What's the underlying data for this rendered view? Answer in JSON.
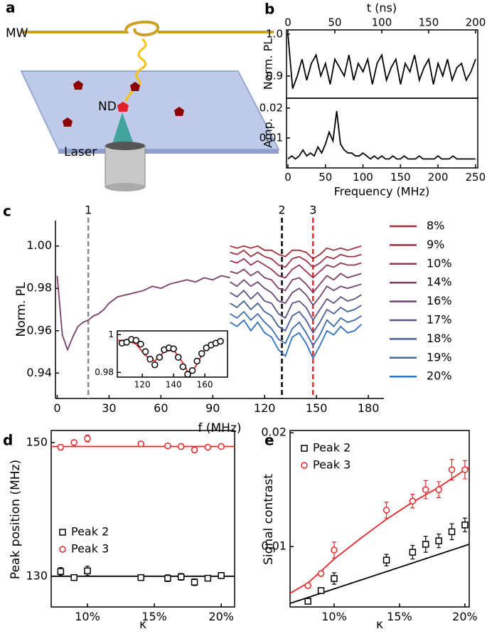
{
  "panel_labels": [
    "a",
    "b",
    "c",
    "d",
    "e"
  ],
  "illustration": {
    "labels": [
      "MW",
      "ND",
      "Laser"
    ]
  },
  "chart_data": [
    {
      "type": "line",
      "xlabel": "t (ns)",
      "ylabel": "Norm. PL",
      "xlim": [
        -1.5,
        202.3
      ],
      "ylim": [
        0.847,
        1.01
      ],
      "xticks": [
        0,
        50,
        100,
        150,
        200
      ],
      "yticks": [
        0.9,
        {
          "value": 1,
          "label": "1.0"
        }
      ],
      "series": [
        {
          "color": "#000000",
          "x": [
            0,
            5,
            10,
            15,
            20,
            25,
            30,
            35,
            40,
            45,
            50,
            55,
            60,
            65,
            70,
            75,
            80,
            85,
            90,
            95,
            100,
            105,
            110,
            115,
            120,
            125,
            130,
            135,
            140,
            145,
            150,
            155,
            160,
            165,
            170,
            175,
            180,
            185,
            190,
            195,
            200
          ],
          "values": [
            1.0,
            0.87,
            0.9,
            0.94,
            0.89,
            0.93,
            0.95,
            0.9,
            0.93,
            0.88,
            0.94,
            0.92,
            0.9,
            0.95,
            0.89,
            0.93,
            0.91,
            0.94,
            0.88,
            0.93,
            0.95,
            0.89,
            0.92,
            0.94,
            0.88,
            0.93,
            0.91,
            0.95,
            0.89,
            0.92,
            0.94,
            0.88,
            0.93,
            0.9,
            0.94,
            0.89,
            0.92,
            0.93,
            0.89,
            0.91,
            0.94
          ]
        }
      ]
    },
    {
      "type": "line",
      "xlabel": "Frequency (MHz)",
      "ylabel": "Amp.",
      "xlim": [
        -1.9,
        253
      ],
      "ylim": [
        0,
        0.0233
      ],
      "xticks": [
        0,
        50,
        100,
        150,
        200,
        250
      ],
      "yticks": [
        0.01,
        0.02
      ],
      "series": [
        {
          "color": "#000000",
          "x": [
            0,
            5,
            10,
            15,
            20,
            25,
            30,
            35,
            40,
            45,
            50,
            55,
            60,
            65,
            70,
            75,
            80,
            85,
            90,
            95,
            100,
            105,
            110,
            115,
            120,
            125,
            130,
            135,
            140,
            145,
            150,
            155,
            160,
            165,
            170,
            175,
            180,
            185,
            190,
            195,
            200,
            205,
            210,
            215,
            220,
            225,
            230,
            235,
            240,
            245,
            250
          ],
          "values": [
            0.003,
            0.004,
            0.003,
            0.004,
            0.006,
            0.004,
            0.005,
            0.004,
            0.007,
            0.005,
            0.008,
            0.012,
            0.009,
            0.019,
            0.008,
            0.006,
            0.005,
            0.005,
            0.004,
            0.004,
            0.005,
            0.004,
            0.003,
            0.004,
            0.003,
            0.004,
            0.003,
            0.003,
            0.004,
            0.003,
            0.003,
            0.004,
            0.003,
            0.003,
            0.003,
            0.004,
            0.003,
            0.003,
            0.003,
            0.003,
            0.004,
            0.003,
            0.003,
            0.003,
            0.004,
            0.003,
            0.003,
            0.003,
            0.003,
            0.003,
            0.003
          ]
        }
      ]
    },
    {
      "type": "line",
      "xlabel": "f (MHz)",
      "ylabel": "Norm. PL",
      "xlim": [
        -1,
        189
      ],
      "ylim": [
        0.928,
        1.012
      ],
      "xticks": [
        0,
        30,
        60,
        90,
        120,
        150,
        180
      ],
      "yticks": [
        0.94,
        0.96,
        0.98,
        {
          "value": 1,
          "label": "1.00"
        }
      ],
      "vlines": [
        {
          "x": 18,
          "label": "1",
          "color": "#888888"
        },
        {
          "x": 130,
          "label": "2",
          "color": "#000000"
        },
        {
          "x": 148,
          "label": "3",
          "color": "#e8262a"
        }
      ],
      "x": [
        100,
        104,
        108,
        112,
        116,
        120,
        124,
        128,
        132,
        136,
        140,
        144,
        148,
        152,
        156,
        160,
        164,
        168,
        172,
        176
      ],
      "series": [
        {
          "color": "#7a3d66",
          "x": [
            0,
            3,
            6,
            9,
            12,
            15,
            18,
            21,
            24,
            27,
            30,
            35,
            40,
            45,
            50,
            55,
            60,
            65,
            70,
            75,
            80,
            85,
            90,
            95,
            100
          ],
          "values": [
            0.986,
            0.958,
            0.951,
            0.957,
            0.962,
            0.964,
            0.965,
            0.967,
            0.968,
            0.97,
            0.973,
            0.976,
            0.977,
            0.978,
            0.979,
            0.981,
            0.98,
            0.982,
            0.983,
            0.984,
            0.983,
            0.985,
            0.984,
            0.986,
            0.985
          ]
        },
        {
          "name": "8%",
          "color": "#a0303a",
          "values": [
            1.0,
            0.999,
            1.0,
            0.999,
            1.0,
            0.998,
            0.998,
            0.996,
            0.995,
            0.998,
            0.998,
            0.997,
            0.994,
            0.996,
            0.999,
            0.998,
            0.999,
            0.998,
            0.999,
            1.0
          ]
        },
        {
          "name": "9%",
          "color": "#9a3245",
          "values": [
            0.997,
            0.996,
            0.998,
            0.995,
            0.997,
            0.995,
            0.994,
            0.991,
            0.99,
            0.994,
            0.995,
            0.993,
            0.99,
            0.992,
            0.995,
            0.994,
            0.996,
            0.995,
            0.995,
            0.996
          ]
        },
        {
          "name": "10%",
          "color": "#93354f",
          "values": [
            0.993,
            0.992,
            0.994,
            0.991,
            0.993,
            0.991,
            0.989,
            0.986,
            0.985,
            0.989,
            0.991,
            0.988,
            0.985,
            0.988,
            0.991,
            0.99,
            0.992,
            0.991,
            0.991,
            0.992
          ]
        },
        {
          "name": "14%",
          "color": "#7e3f63",
          "values": [
            0.988,
            0.987,
            0.989,
            0.986,
            0.988,
            0.985,
            0.984,
            0.98,
            0.979,
            0.984,
            0.985,
            0.982,
            0.978,
            0.982,
            0.986,
            0.984,
            0.987,
            0.985,
            0.986,
            0.987
          ]
        },
        {
          "name": "16%",
          "color": "#6d4772",
          "values": [
            0.983,
            0.981,
            0.984,
            0.981,
            0.983,
            0.98,
            0.978,
            0.974,
            0.973,
            0.978,
            0.98,
            0.977,
            0.972,
            0.976,
            0.981,
            0.979,
            0.981,
            0.98,
            0.981,
            0.982
          ]
        },
        {
          "name": "17%",
          "color": "#5b5283",
          "values": [
            0.978,
            0.976,
            0.979,
            0.975,
            0.978,
            0.974,
            0.973,
            0.968,
            0.966,
            0.973,
            0.974,
            0.971,
            0.965,
            0.97,
            0.975,
            0.973,
            0.976,
            0.974,
            0.975,
            0.977
          ]
        },
        {
          "name": "18%",
          "color": "#4a5e96",
          "values": [
            0.973,
            0.971,
            0.974,
            0.97,
            0.973,
            0.969,
            0.967,
            0.962,
            0.96,
            0.967,
            0.969,
            0.965,
            0.959,
            0.964,
            0.97,
            0.968,
            0.971,
            0.969,
            0.97,
            0.972
          ]
        },
        {
          "name": "19%",
          "color": "#3d6aaa",
          "values": [
            0.968,
            0.966,
            0.969,
            0.965,
            0.968,
            0.964,
            0.961,
            0.956,
            0.954,
            0.961,
            0.964,
            0.959,
            0.953,
            0.958,
            0.965,
            0.962,
            0.966,
            0.964,
            0.965,
            0.967
          ]
        },
        {
          "name": "20%",
          "color": "#2f73c0",
          "values": [
            0.964,
            0.962,
            0.965,
            0.96,
            0.964,
            0.959,
            0.957,
            0.951,
            0.948,
            0.957,
            0.959,
            0.954,
            0.947,
            0.953,
            0.96,
            0.958,
            0.962,
            0.959,
            0.96,
            0.963
          ]
        }
      ]
    },
    {
      "type": "scatter",
      "xlim": [
        104,
        174.5
      ],
      "ylim": [
        0.9775,
        1.002
      ],
      "xticks": [
        120,
        140,
        160
      ],
      "yticks": [
        0.98,
        1
      ],
      "series": [
        {
          "color": "#000000",
          "marker": "circle",
          "x": [
            107,
            110,
            113,
            116,
            119,
            122,
            125,
            128,
            131,
            134,
            137,
            140,
            143,
            146,
            149,
            152,
            155,
            158,
            161,
            164,
            167,
            170
          ],
          "values": [
            0.9955,
            0.996,
            0.9975,
            0.997,
            0.995,
            0.991,
            0.987,
            0.984,
            0.988,
            0.992,
            0.993,
            0.9925,
            0.988,
            0.983,
            0.979,
            0.981,
            0.986,
            0.99,
            0.993,
            0.9945,
            0.9955,
            0.9965
          ],
          "fit": {
            "color": "#e8262a",
            "x": [
              104,
              110,
              116,
              122,
              128,
              134,
              140,
              146,
              150,
              154,
              160,
              166,
              172
            ],
            "y": [
              0.997,
              0.997,
              0.995,
              0.989,
              0.986,
              0.991,
              0.992,
              0.985,
              0.979,
              0.983,
              0.992,
              0.996,
              0.997
            ]
          }
        }
      ]
    },
    {
      "type": "scatter",
      "xlabel": "κ",
      "ylabel": "Peak position (MHz)",
      "xlim": [
        7.29,
        21
      ],
      "ylim": [
        125.4,
        151.8
      ],
      "xticks": [
        {
          "value": 10,
          "label": "10%"
        },
        {
          "value": 15,
          "label": "15%"
        },
        {
          "value": 20,
          "label": "20%"
        }
      ],
      "yticks": [
        130,
        150
      ],
      "series": [
        {
          "name": "Peak 2",
          "color": "#000000",
          "marker": "square",
          "x": [
            8,
            9,
            10,
            14,
            16,
            17,
            18,
            19,
            20
          ],
          "values": [
            130.7,
            129.8,
            130.8,
            129.8,
            129.7,
            129.9,
            129.1,
            129.7,
            130.1
          ],
          "errors": [
            0.6,
            0.4,
            0.7,
            0.4,
            0.5,
            0.5,
            0.5,
            0.4,
            0.3
          ],
          "fit": {
            "color": "#000000",
            "x": [
              7.29,
              21
            ],
            "y": [
              130,
              130
            ]
          }
        },
        {
          "name": "Peak 3",
          "color": "#e8262a",
          "marker": "circle",
          "x": [
            8,
            9,
            10,
            14,
            16,
            17,
            18,
            19,
            20
          ],
          "values": [
            149.3,
            150,
            150.6,
            149.8,
            149.5,
            149.4,
            148.9,
            149.3,
            149.4
          ],
          "errors": [
            0.4,
            0.3,
            0.5,
            0.3,
            0.3,
            0.4,
            0.4,
            0.3,
            0.3
          ],
          "fit": {
            "color": "#e8262a",
            "x": [
              7.29,
              21
            ],
            "y": [
              149.4,
              149.4
            ]
          }
        }
      ]
    },
    {
      "type": "scatter",
      "xlabel": "κ",
      "ylabel": "Signal contrast",
      "xlim": [
        6.63,
        20.33
      ],
      "ylim": [
        0.00469,
        0.0202
      ],
      "xticks": [
        {
          "value": 10,
          "label": "10%"
        },
        {
          "value": 15,
          "label": "15%"
        },
        {
          "value": 20,
          "label": "20%"
        }
      ],
      "yticks": [
        0.01,
        0.02
      ],
      "series": [
        {
          "name": "Peak 2",
          "color": "#000000",
          "marker": "square",
          "x": [
            8,
            9,
            10,
            14,
            16,
            17,
            18,
            19,
            20
          ],
          "values": [
            0.00519,
            0.00613,
            0.00719,
            0.00881,
            0.0095,
            0.0102,
            0.0105,
            0.0113,
            0.0119
          ],
          "errors": [
            0.0002,
            0.0002,
            0.0005,
            0.0005,
            0.0006,
            0.0007,
            0.0006,
            0.0007,
            0.0006
          ],
          "fit": {
            "color": "#000000",
            "x": [
              6.63,
              20.33
            ],
            "y": [
              0.005,
              0.0102
            ]
          }
        },
        {
          "name": "Peak 3",
          "color": "#e8262a",
          "marker": "circle",
          "x": [
            8,
            9,
            10,
            14,
            16,
            17,
            18,
            19,
            20
          ],
          "values": [
            0.00656,
            0.00763,
            0.00969,
            0.0132,
            0.014,
            0.015,
            0.015,
            0.01675,
            0.01675
          ],
          "errors": [
            0.0002,
            0.0002,
            0.0007,
            0.0007,
            0.0006,
            0.0008,
            0.0007,
            0.0009,
            0.0008
          ],
          "fit": {
            "color": "#e8262a",
            "x": [
              6.63,
              8,
              10,
              12,
              14,
              16,
              18,
              20.33
            ],
            "y": [
              0.0059,
              0.0068,
              0.0089,
              0.0107,
              0.0124,
              0.0139,
              0.0152,
              0.017
            ]
          }
        }
      ]
    }
  ]
}
